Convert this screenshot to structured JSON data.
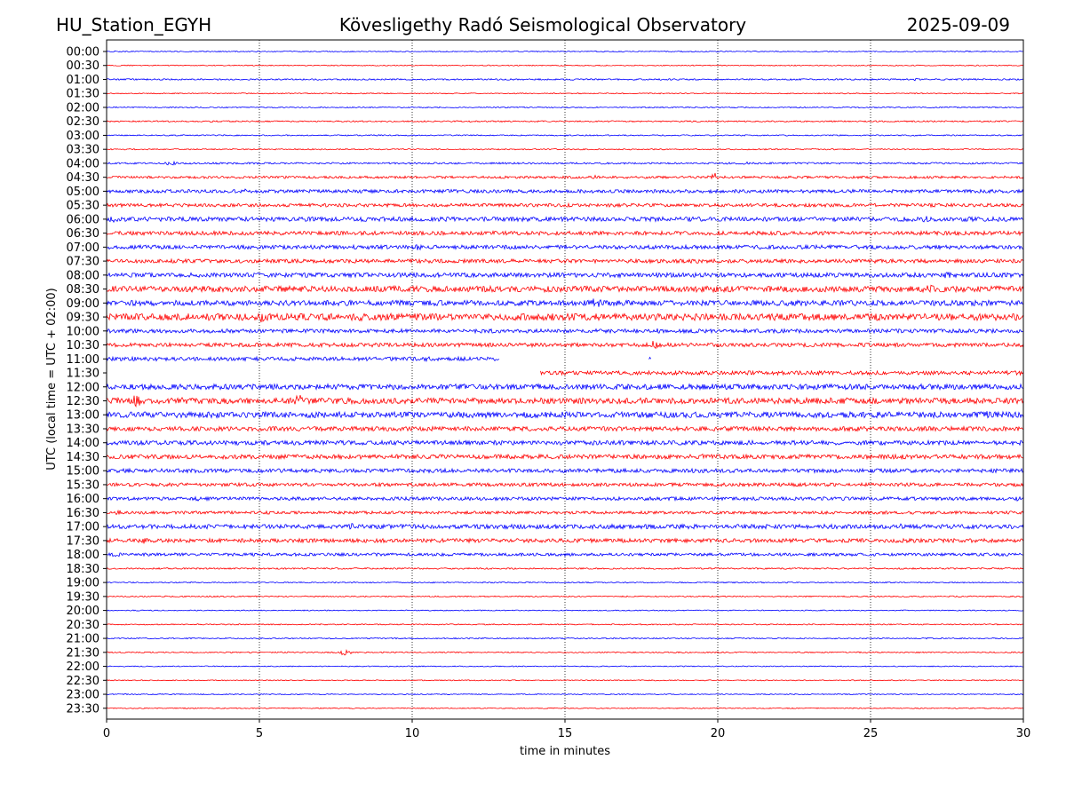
{
  "header": {
    "station": "HU_Station_EGYH",
    "title": "Kövesligethy Radó Seismological Observatory",
    "date": "2025-09-09"
  },
  "chart_data": {
    "type": "line",
    "title": "Kövesligethy Radó Seismological Observatory",
    "xlabel": "time in minutes",
    "ylabel": "UTC (local time = UTC + 02:00)",
    "xlim": [
      0,
      30
    ],
    "x_ticks": [
      0,
      5,
      10,
      15,
      20,
      25,
      30
    ],
    "grid": "vertical dotted lines at 5-minute intervals",
    "colors": {
      "even_rows": "#0000ff",
      "odd_rows": "#ff0000",
      "grid": "#000000"
    },
    "rows": [
      {
        "label": "00:00",
        "activity": 0.1
      },
      {
        "label": "00:30",
        "activity": 0.1
      },
      {
        "label": "01:00",
        "activity": 0.15,
        "events": [
          {
            "t": 26.5,
            "amp": 0.3
          }
        ]
      },
      {
        "label": "01:30",
        "activity": 0.1
      },
      {
        "label": "02:00",
        "activity": 0.12
      },
      {
        "label": "02:30",
        "activity": 0.14,
        "events": [
          {
            "t": 3.5,
            "amp": 0.3
          }
        ]
      },
      {
        "label": "03:00",
        "activity": 0.12
      },
      {
        "label": "03:30",
        "activity": 0.12
      },
      {
        "label": "04:00",
        "activity": 0.18,
        "events": [
          {
            "t": 2.1,
            "amp": 0.5
          },
          {
            "t": 21.0,
            "amp": 0.4
          }
        ]
      },
      {
        "label": "04:30",
        "activity": 0.25,
        "events": [
          {
            "t": 19.9,
            "amp": 0.9
          },
          {
            "t": 16.0,
            "amp": 0.4
          }
        ]
      },
      {
        "label": "05:00",
        "activity": 0.35,
        "events": [
          {
            "t": 4.5,
            "amp": 0.5
          }
        ]
      },
      {
        "label": "05:30",
        "activity": 0.35,
        "events": [
          {
            "t": 29.0,
            "amp": 0.5
          }
        ]
      },
      {
        "label": "06:00",
        "activity": 0.45,
        "events": [
          {
            "t": 0.2,
            "amp": 0.7
          },
          {
            "t": 26.8,
            "amp": 0.7
          }
        ]
      },
      {
        "label": "06:30",
        "activity": 0.4
      },
      {
        "label": "07:00",
        "activity": 0.4,
        "events": [
          {
            "t": 10.2,
            "amp": 0.8
          }
        ]
      },
      {
        "label": "07:30",
        "activity": 0.4,
        "events": [
          {
            "t": 19.0,
            "amp": 0.5
          }
        ]
      },
      {
        "label": "08:00",
        "activity": 0.45,
        "events": [
          {
            "t": 27.5,
            "amp": 0.8
          },
          {
            "t": 13.5,
            "amp": 0.5
          }
        ]
      },
      {
        "label": "08:30",
        "activity": 0.6,
        "events": [
          {
            "t": 26.9,
            "amp": 1.1
          },
          {
            "t": 29.5,
            "amp": 0.8
          }
        ]
      },
      {
        "label": "09:00",
        "activity": 0.55,
        "events": [
          {
            "t": 16.0,
            "amp": 1.4
          },
          {
            "t": 1.5,
            "amp": 0.7
          }
        ]
      },
      {
        "label": "09:30",
        "activity": 0.7,
        "events": [
          {
            "t": 5.1,
            "amp": 1.3
          },
          {
            "t": 8.3,
            "amp": 0.9
          },
          {
            "t": 13.2,
            "amp": 0.9
          }
        ]
      },
      {
        "label": "10:00",
        "activity": 0.4,
        "events": [
          {
            "t": 18.0,
            "amp": 0.6
          }
        ]
      },
      {
        "label": "10:30",
        "activity": 0.4,
        "events": [
          {
            "t": 17.9,
            "amp": 0.9
          },
          {
            "t": 3.2,
            "amp": 0.5
          }
        ]
      },
      {
        "label": "11:00",
        "activity": 0.4,
        "segments": [
          [
            0,
            12.85
          ],
          [
            17.75,
            17.82
          ]
        ],
        "events": [
          {
            "t": 10.5,
            "amp": 0.5
          }
        ]
      },
      {
        "label": "11:30",
        "activity": 0.4,
        "segments": [
          [
            14.2,
            30
          ]
        ]
      },
      {
        "label": "12:00",
        "activity": 0.55,
        "events": [
          {
            "t": 19.8,
            "amp": 0.7
          },
          {
            "t": 12.0,
            "amp": 0.5
          }
        ]
      },
      {
        "label": "12:30",
        "activity": 0.6,
        "events": [
          {
            "t": 1.0,
            "amp": 1.5
          },
          {
            "t": 6.3,
            "amp": 1.4
          },
          {
            "t": 2.5,
            "amp": 0.9
          }
        ]
      },
      {
        "label": "13:00",
        "activity": 0.6,
        "events": [
          {
            "t": 25.5,
            "amp": 0.9
          },
          {
            "t": 28.8,
            "amp": 0.8
          },
          {
            "t": 2.0,
            "amp": 0.6
          }
        ]
      },
      {
        "label": "13:30",
        "activity": 0.45,
        "events": [
          {
            "t": 6.5,
            "amp": 0.5
          }
        ]
      },
      {
        "label": "14:00",
        "activity": 0.45,
        "events": [
          {
            "t": 1.2,
            "amp": 0.5
          }
        ]
      },
      {
        "label": "14:30",
        "activity": 0.45,
        "events": [
          {
            "t": 19.5,
            "amp": 0.6
          },
          {
            "t": 2.0,
            "amp": 0.5
          }
        ]
      },
      {
        "label": "15:00",
        "activity": 0.4
      },
      {
        "label": "15:30",
        "activity": 0.35
      },
      {
        "label": "16:00",
        "activity": 0.35,
        "events": [
          {
            "t": 3.0,
            "amp": 0.6
          },
          {
            "t": 29.8,
            "amp": 0.5
          }
        ]
      },
      {
        "label": "16:30",
        "activity": 0.3,
        "events": [
          {
            "t": 0.4,
            "amp": 0.6
          },
          {
            "t": 21.0,
            "amp": 0.4
          }
        ]
      },
      {
        "label": "17:00",
        "activity": 0.45,
        "events": [
          {
            "t": 8.0,
            "amp": 0.7
          },
          {
            "t": 26.0,
            "amp": 0.6
          }
        ]
      },
      {
        "label": "17:30",
        "activity": 0.4,
        "events": [
          {
            "t": 1.2,
            "amp": 0.8
          },
          {
            "t": 5.0,
            "amp": 0.4
          }
        ]
      },
      {
        "label": "18:00",
        "activity": 0.3,
        "events": [
          {
            "t": 0.3,
            "amp": 0.6
          },
          {
            "t": 2.2,
            "amp": 0.4
          }
        ]
      },
      {
        "label": "18:30",
        "activity": 0.15
      },
      {
        "label": "19:00",
        "activity": 0.12
      },
      {
        "label": "19:30",
        "activity": 0.12
      },
      {
        "label": "20:00",
        "activity": 0.1
      },
      {
        "label": "20:30",
        "activity": 0.12
      },
      {
        "label": "21:00",
        "activity": 0.12
      },
      {
        "label": "21:30",
        "activity": 0.12,
        "events": [
          {
            "t": 7.8,
            "amp": 0.7
          }
        ]
      },
      {
        "label": "22:00",
        "activity": 0.1
      },
      {
        "label": "22:30",
        "activity": 0.1
      },
      {
        "label": "23:00",
        "activity": 0.1
      },
      {
        "label": "23:30",
        "activity": 0.1
      }
    ]
  }
}
